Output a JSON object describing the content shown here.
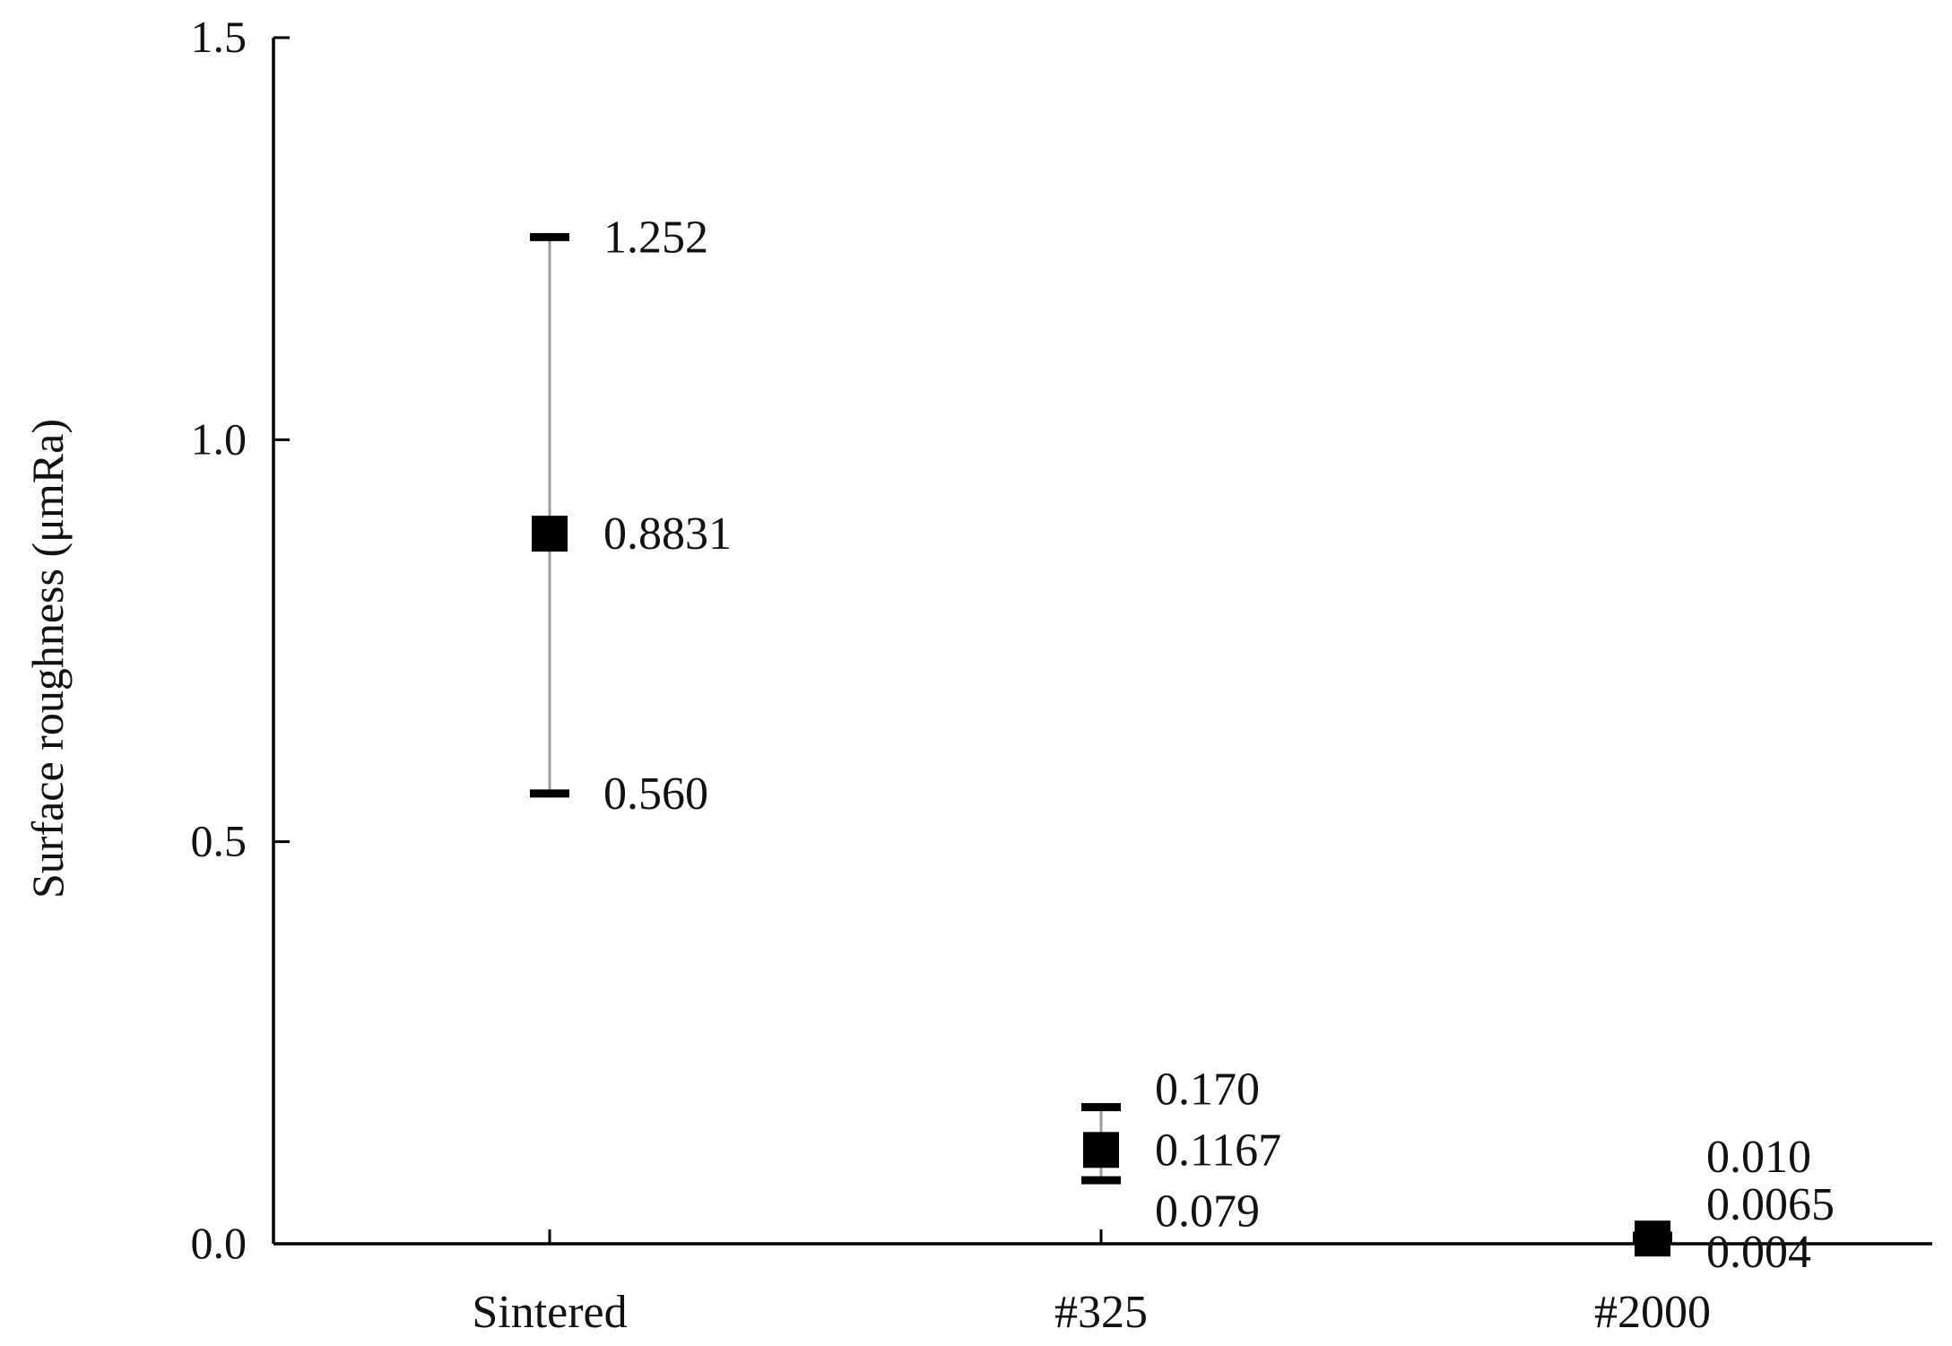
{
  "chart_data": {
    "type": "scatter",
    "title": "",
    "xlabel": "",
    "ylabel": "Surface roughness (μmRa)",
    "ylim": [
      0,
      1.5
    ],
    "yticks": [
      {
        "value": 0.0,
        "label": "0.0"
      },
      {
        "value": 0.5,
        "label": "0.5"
      },
      {
        "value": 1.0,
        "label": "1.0"
      },
      {
        "value": 1.5,
        "label": "1.5"
      }
    ],
    "categories": [
      "Sintered",
      "#325",
      "#2000"
    ],
    "points": [
      {
        "category": "Sintered",
        "mean": 0.8831,
        "max": 1.252,
        "min": 0.56,
        "mean_label": "0.8831",
        "max_label": "1.252",
        "min_label": "0.560"
      },
      {
        "category": "#325",
        "mean": 0.1167,
        "max": 0.17,
        "min": 0.079,
        "mean_label": "0.1167",
        "max_label": "0.170",
        "min_label": "0.079"
      },
      {
        "category": "#2000",
        "mean": 0.0065,
        "max": 0.01,
        "min": 0.004,
        "mean_label": "0.0065",
        "max_label": "0.010",
        "min_label": "0.004"
      }
    ],
    "grid": false,
    "legend": "none",
    "marker_color": "#000000",
    "errorbar_color": "#9a9a9a"
  }
}
